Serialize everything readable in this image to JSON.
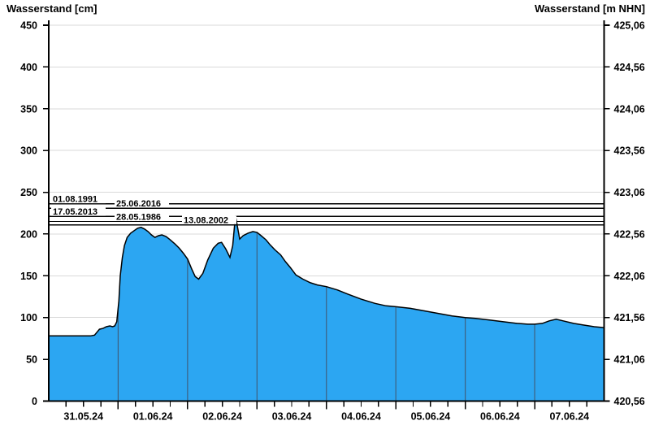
{
  "titles": {
    "left": "Wasserstand [cm]",
    "right": "Wasserstand [m NHN]"
  },
  "chart_data": {
    "type": "area",
    "ylabel_left": "Wasserstand [cm]",
    "ylabel_right": "Wasserstand [m NHN]",
    "y_left": {
      "min": 0,
      "max": 450,
      "step": 50,
      "ticks": [
        450,
        400,
        350,
        300,
        250,
        200,
        150,
        100,
        50,
        0
      ]
    },
    "y_right": {
      "ticks": [
        "425,06",
        "424,56",
        "424,06",
        "423,56",
        "423,06",
        "422,56",
        "422,06",
        "421,56",
        "421,06",
        "420,56"
      ]
    },
    "x_axis": {
      "days": 8,
      "minor_ticks_per_day": 4,
      "labels": [
        "31.05.24",
        "01.06.24",
        "02.06.24",
        "03.06.24",
        "04.06.24",
        "05.06.24",
        "06.06.24",
        "07.06.24"
      ]
    },
    "grid": {
      "horizontal": true,
      "color": "#d9d9d9"
    },
    "colors": {
      "area_fill": "#2ca6f2",
      "area_line": "#000000",
      "axis": "#000000",
      "day_separator": "#3d6080",
      "reference_line": "#000000",
      "label_background": "#ffffff"
    },
    "series": [
      {
        "name": "Wasserstand",
        "unit": "cm",
        "points": [
          [
            0.0,
            78
          ],
          [
            0.3,
            78
          ],
          [
            0.6,
            78
          ],
          [
            0.66,
            79
          ],
          [
            0.7,
            83
          ],
          [
            0.73,
            86
          ],
          [
            0.78,
            87
          ],
          [
            0.83,
            89
          ],
          [
            0.88,
            90
          ],
          [
            0.92,
            89
          ],
          [
            0.95,
            90
          ],
          [
            0.98,
            95
          ],
          [
            1.01,
            120
          ],
          [
            1.03,
            150
          ],
          [
            1.06,
            172
          ],
          [
            1.09,
            186
          ],
          [
            1.13,
            196
          ],
          [
            1.18,
            201
          ],
          [
            1.23,
            204
          ],
          [
            1.28,
            207
          ],
          [
            1.33,
            208
          ],
          [
            1.38,
            206
          ],
          [
            1.43,
            203
          ],
          [
            1.48,
            199
          ],
          [
            1.53,
            196
          ],
          [
            1.58,
            198
          ],
          [
            1.63,
            199
          ],
          [
            1.69,
            197
          ],
          [
            1.75,
            193
          ],
          [
            1.82,
            188
          ],
          [
            1.88,
            183
          ],
          [
            1.94,
            177
          ],
          [
            2.0,
            170
          ],
          [
            2.06,
            158
          ],
          [
            2.11,
            149
          ],
          [
            2.16,
            146
          ],
          [
            2.22,
            153
          ],
          [
            2.29,
            169
          ],
          [
            2.37,
            183
          ],
          [
            2.44,
            189
          ],
          [
            2.49,
            190
          ],
          [
            2.55,
            182
          ],
          [
            2.61,
            172
          ],
          [
            2.65,
            186
          ],
          [
            2.69,
            222
          ],
          [
            2.72,
            208
          ],
          [
            2.75,
            194
          ],
          [
            2.8,
            198
          ],
          [
            2.87,
            201
          ],
          [
            2.94,
            203
          ],
          [
            3.0,
            202
          ],
          [
            3.06,
            198
          ],
          [
            3.13,
            193
          ],
          [
            3.19,
            187
          ],
          [
            3.26,
            181
          ],
          [
            3.34,
            175
          ],
          [
            3.41,
            167
          ],
          [
            3.48,
            160
          ],
          [
            3.56,
            151
          ],
          [
            3.66,
            146
          ],
          [
            3.76,
            142
          ],
          [
            3.87,
            139
          ],
          [
            4.0,
            137
          ],
          [
            4.16,
            133
          ],
          [
            4.31,
            128
          ],
          [
            4.5,
            122
          ],
          [
            4.7,
            117
          ],
          [
            4.86,
            114
          ],
          [
            5.0,
            113
          ],
          [
            5.21,
            111
          ],
          [
            5.41,
            108
          ],
          [
            5.61,
            105
          ],
          [
            5.81,
            102
          ],
          [
            6.0,
            100
          ],
          [
            6.15,
            99
          ],
          [
            6.35,
            97
          ],
          [
            6.55,
            95
          ],
          [
            6.75,
            93
          ],
          [
            6.9,
            92
          ],
          [
            7.0,
            92
          ],
          [
            7.11,
            93
          ],
          [
            7.21,
            96
          ],
          [
            7.31,
            98
          ],
          [
            7.41,
            96
          ],
          [
            7.56,
            93
          ],
          [
            7.71,
            91
          ],
          [
            7.86,
            89
          ],
          [
            8.0,
            88
          ]
        ]
      }
    ],
    "reference_lines": [
      {
        "label": "01.08.1991",
        "value_cm": 236,
        "col": 0
      },
      {
        "label": "25.06.2016",
        "value_cm": 231,
        "col": 1
      },
      {
        "label": "17.05.2013",
        "value_cm": 221,
        "col": 0
      },
      {
        "label": "28.05.1986",
        "value_cm": 215,
        "col": 1
      },
      {
        "label": "13.08.2002",
        "value_cm": 211,
        "col": 2
      }
    ]
  }
}
